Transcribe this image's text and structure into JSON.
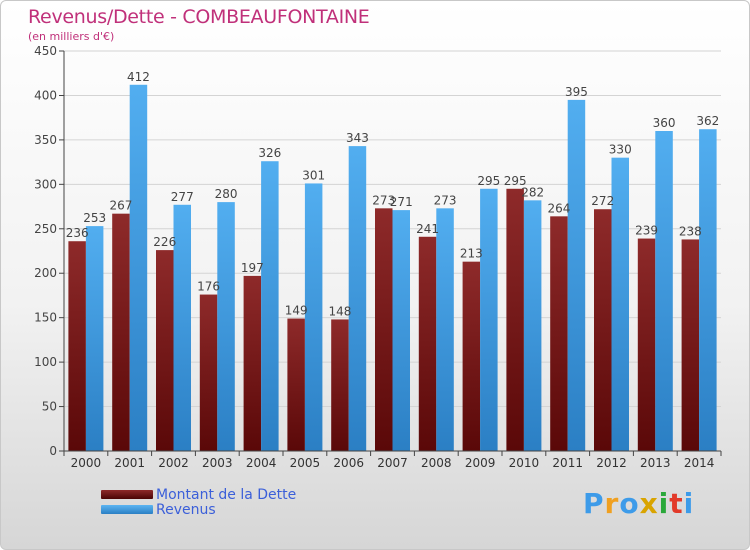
{
  "chart_data": {
    "type": "bar",
    "title": "Revenus/Dette - COMBEAUFONTAINE",
    "subtitle": "(en milliers d'€)",
    "categories": [
      "2000",
      "2001",
      "2002",
      "2003",
      "2004",
      "2005",
      "2006",
      "2007",
      "2008",
      "2009",
      "2010",
      "2011",
      "2012",
      "2013",
      "2014"
    ],
    "series": [
      {
        "name": "Montant de la Dette",
        "color": "#8b1a1a",
        "values": [
          236,
          267,
          226,
          176,
          197,
          149,
          148,
          273,
          241,
          213,
          295,
          264,
          272,
          239,
          238
        ]
      },
      {
        "name": "Revenus",
        "color": "#3d9be9",
        "values": [
          253,
          412,
          277,
          280,
          326,
          301,
          343,
          271,
          273,
          295,
          282,
          395,
          330,
          360,
          362
        ]
      }
    ],
    "ylim": [
      0,
      450
    ],
    "yticks": [
      0,
      50,
      100,
      150,
      200,
      250,
      300,
      350,
      400,
      450
    ],
    "grid": true,
    "legend": "bottom-left"
  },
  "logo": {
    "letters": [
      "P",
      "r",
      "o",
      "x",
      "i",
      "t",
      "i"
    ],
    "colors": [
      "#3d9be9",
      "#f0a020",
      "#3d9be9",
      "#d9a400",
      "#2aa83a",
      "#e23a2a",
      "#3d9be9"
    ]
  }
}
